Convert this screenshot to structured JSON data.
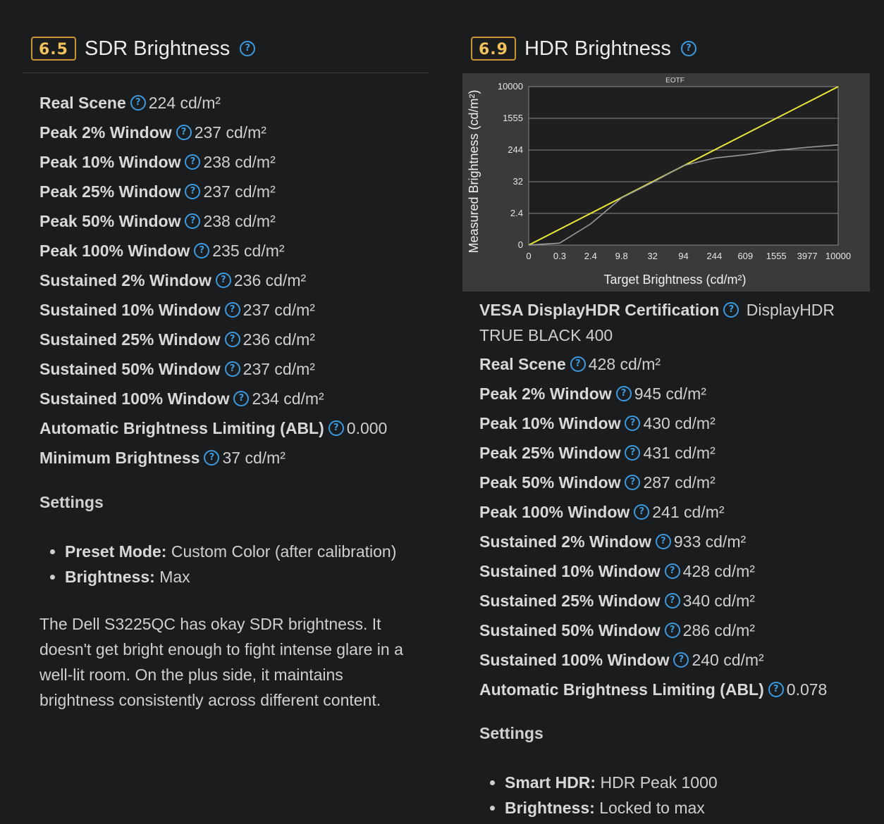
{
  "sdr": {
    "score": "6.5",
    "title": "SDR Brightness",
    "rows": [
      {
        "label": "Real Scene",
        "value": "224 cd/m²"
      },
      {
        "label": "Peak 2% Window",
        "value": "237 cd/m²"
      },
      {
        "label": "Peak 10% Window",
        "value": "238 cd/m²"
      },
      {
        "label": "Peak 25% Window",
        "value": "237 cd/m²"
      },
      {
        "label": "Peak 50% Window",
        "value": "238 cd/m²"
      },
      {
        "label": "Peak 100% Window",
        "value": "235 cd/m²"
      },
      {
        "label": "Sustained 2% Window",
        "value": "236 cd/m²"
      },
      {
        "label": "Sustained 10% Window",
        "value": "237 cd/m²"
      },
      {
        "label": "Sustained 25% Window",
        "value": "236 cd/m²"
      },
      {
        "label": "Sustained 50% Window",
        "value": "237 cd/m²"
      },
      {
        "label": "Sustained 100% Window",
        "value": "234 cd/m²"
      },
      {
        "label": "Automatic Brightness Limiting (ABL)",
        "value": "0.000"
      },
      {
        "label": "Minimum Brightness",
        "value": "37 cd/m²"
      }
    ],
    "settings_heading": "Settings",
    "settings": [
      {
        "label": "Preset Mode:",
        "value": "Custom Color (after calibration)"
      },
      {
        "label": "Brightness:",
        "value": "Max"
      }
    ],
    "description": "The Dell S3225QC has okay SDR brightness. It doesn't get bright enough to fight intense glare in a well-lit room. On the plus side, it maintains brightness consistently across different content."
  },
  "hdr": {
    "score": "6.9",
    "title": "HDR Brightness",
    "cert_label": "VESA DisplayHDR Certification",
    "cert_value": "DisplayHDR TRUE BLACK 400",
    "rows": [
      {
        "label": "Real Scene",
        "value": "428 cd/m²"
      },
      {
        "label": "Peak 2% Window",
        "value": "945 cd/m²"
      },
      {
        "label": "Peak 10% Window",
        "value": "430 cd/m²"
      },
      {
        "label": "Peak 25% Window",
        "value": "431 cd/m²"
      },
      {
        "label": "Peak 50% Window",
        "value": "287 cd/m²"
      },
      {
        "label": "Peak 100% Window",
        "value": "241 cd/m²"
      },
      {
        "label": "Sustained 2% Window",
        "value": "933 cd/m²"
      },
      {
        "label": "Sustained 10% Window",
        "value": "428 cd/m²"
      },
      {
        "label": "Sustained 25% Window",
        "value": "340 cd/m²"
      },
      {
        "label": "Sustained 50% Window",
        "value": "286 cd/m²"
      },
      {
        "label": "Sustained 100% Window",
        "value": "240 cd/m²"
      },
      {
        "label": "Automatic Brightness Limiting (ABL)",
        "value": "0.078"
      }
    ],
    "settings_heading": "Settings",
    "settings": [
      {
        "label": "Smart HDR:",
        "value": "HDR Peak 1000"
      },
      {
        "label": "Brightness:",
        "value": "Locked to max"
      }
    ]
  },
  "icons": {
    "help": "question-circle-icon",
    "help_glyph": "?"
  },
  "colors": {
    "accent_score_border": "#c99630",
    "help_blue": "#3b9ae0",
    "target_line": "#e8e83a",
    "measured_line": "#9a9a9a",
    "background": "#1b1c1e"
  },
  "chart_data": {
    "type": "line",
    "title": "EOTF",
    "xlabel": "Target Brightness (cd/m²)",
    "ylabel": "Measured Brightness (cd/m²)",
    "x_ticks": [
      "0",
      "0.3",
      "2.4",
      "9.8",
      "32",
      "94",
      "244",
      "609",
      "1555",
      "3977",
      "10000"
    ],
    "y_ticks": [
      "0",
      "2.4",
      "32",
      "244",
      "1555",
      "10000"
    ],
    "scale": "PQ (perceptual)",
    "grid": true,
    "series": [
      {
        "role": "target",
        "color": "#e8e83a",
        "x": [
          0,
          10000
        ],
        "y": [
          0,
          10000
        ]
      },
      {
        "role": "measured",
        "color": "#9a9a9a",
        "x": [
          0,
          0.3,
          2.4,
          9.8,
          32,
          94,
          244,
          609,
          1555,
          3977,
          10000
        ],
        "y": [
          0,
          0.15,
          1.6,
          8.5,
          30,
          90,
          145,
          180,
          240,
          285,
          330
        ]
      }
    ]
  }
}
